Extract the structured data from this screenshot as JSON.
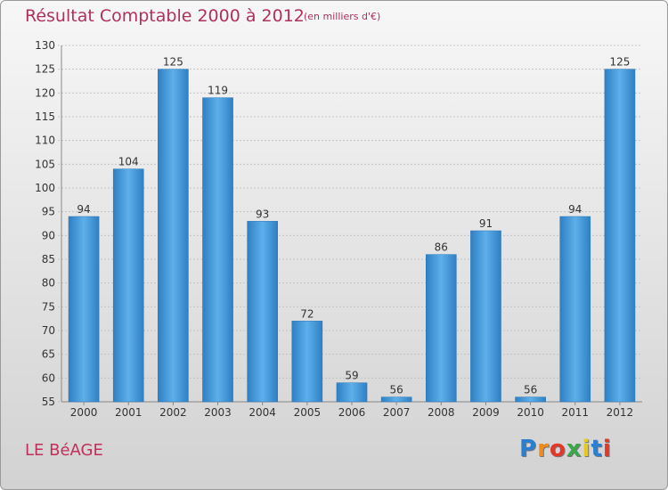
{
  "chart_data": {
    "type": "bar",
    "title": "Résultat Comptable 2000 à 2012",
    "subtitle": "(en milliers d'€)",
    "categories": [
      "2000",
      "2001",
      "2002",
      "2003",
      "2004",
      "2005",
      "2006",
      "2007",
      "2008",
      "2009",
      "2010",
      "2011",
      "2012"
    ],
    "values": [
      94,
      104,
      125,
      119,
      93,
      72,
      59,
      56,
      86,
      91,
      56,
      94,
      125
    ],
    "ylim": [
      55,
      130
    ],
    "yticks": [
      55,
      60,
      65,
      70,
      75,
      80,
      85,
      90,
      95,
      100,
      105,
      110,
      115,
      120,
      125,
      130
    ],
    "grid": true,
    "bar_color": "#3a8fd4"
  },
  "footer": {
    "place": "LE BéAGE",
    "logo_letters": [
      "P",
      "r",
      "o",
      "x",
      "i",
      "t",
      "i"
    ],
    "logo_colors": [
      "#2a7fd0",
      "#f08c1a",
      "#e23a2a",
      "#3aa84a",
      "#e8c81e",
      "#2a7fd0",
      "#e23a2a"
    ]
  }
}
